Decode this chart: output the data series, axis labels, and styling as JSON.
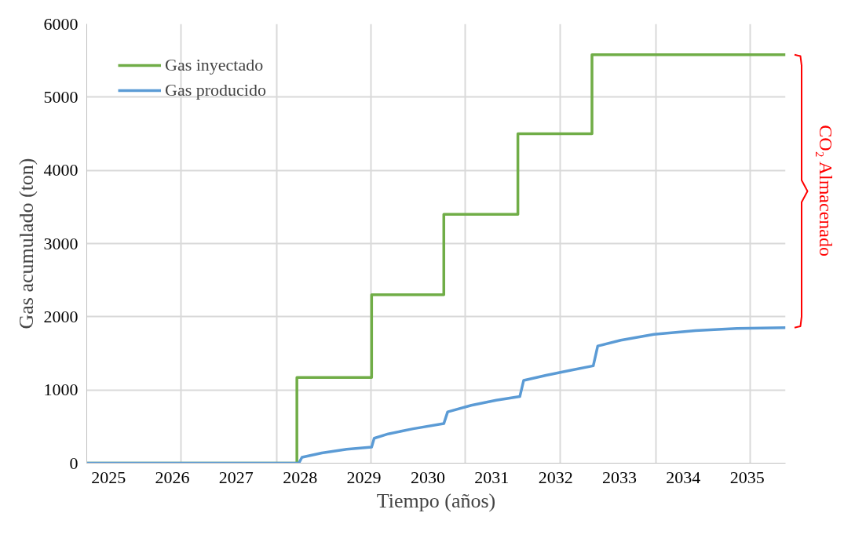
{
  "chart_data": {
    "type": "line",
    "xlabel": "Tiempo (años)",
    "ylabel": "Gas acumulado (ton)",
    "xlim": [
      2024.66,
      2035.6
    ],
    "ylim": [
      0,
      6000
    ],
    "xticks": [
      2025,
      2026,
      2027,
      2028,
      2029,
      2030,
      2031,
      2032,
      2033,
      2034,
      2035,
      {
        "value": 2026.14,
        "label": null
      },
      {
        "value": 2027.63,
        "label": null
      },
      {
        "value": 2029.11,
        "label": null
      },
      {
        "value": 2030.59,
        "label": null
      },
      {
        "value": 2032.07,
        "label": null
      },
      {
        "value": 2033.57,
        "label": null
      },
      {
        "value": 2035.05,
        "label": null
      }
    ],
    "yticks": [
      0,
      1000,
      2000,
      3000,
      4000,
      5000,
      6000
    ],
    "grid": true,
    "legend": "top left",
    "line_style": "solid",
    "marker": "none",
    "series": [
      {
        "name": "Gas inyectado",
        "type": "step",
        "color": "#70ad47",
        "x": [
          2024.66,
          2027.95,
          2029.12,
          2030.25,
          2031.41,
          2032.57,
          2035.6
        ],
        "values": [
          0,
          1170,
          2300,
          3400,
          4500,
          5580,
          5580
        ]
      },
      {
        "name": "Gas producido",
        "color": "#5b9bd5",
        "x": [
          2024.66,
          2027.98,
          2028.03,
          2028.34,
          2028.73,
          2029.12,
          2029.16,
          2029.38,
          2029.77,
          2030.25,
          2030.31,
          2030.68,
          2031.07,
          2031.44,
          2031.5,
          2031.85,
          2032.24,
          2032.59,
          2032.66,
          2033.02,
          2033.54,
          2034.19,
          2034.84,
          2035.6
        ],
        "values": [
          0,
          0,
          80,
          140,
          190,
          220,
          340,
          400,
          470,
          540,
          700,
          790,
          860,
          910,
          1130,
          1200,
          1270,
          1330,
          1600,
          1680,
          1760,
          1810,
          1840,
          1850
        ]
      }
    ],
    "annotations": [
      "CO₂ Almacenado"
    ]
  }
}
